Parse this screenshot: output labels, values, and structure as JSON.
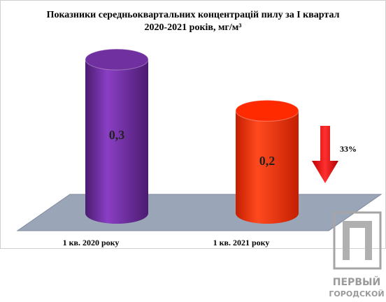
{
  "chart_data": {
    "type": "cylinder-bar",
    "title": [
      "Показники середньоквартальних концентрацій пилу за І квартал",
      "2020-2021 років, мг/м³"
    ],
    "categories": [
      "1 кв. 2020 року",
      "1 кв. 2021 року"
    ],
    "series": [
      {
        "colors": [
          "#7030a0",
          "#ff2a00"
        ],
        "values": [
          0.3,
          0.2
        ],
        "value_labels": [
          "0,3",
          "0,2"
        ]
      }
    ],
    "annotation": "33%",
    "watermark": [
      "ПЕРВЫЙ",
      "ГОРОДСКОЙ"
    ]
  }
}
